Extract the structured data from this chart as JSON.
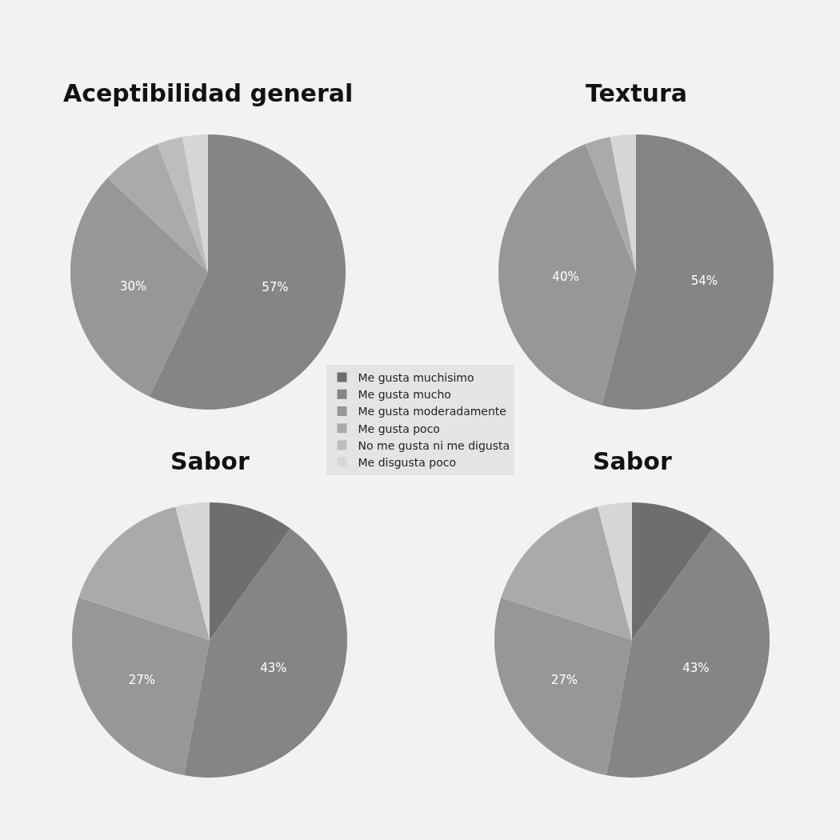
{
  "chart_data": [
    {
      "type": "pie",
      "title": "Aceptibilidad general",
      "categories": [
        "Me gusta muchisimo",
        "Me gusta mucho",
        "Me gusta moderadamente",
        "Me gusta poco",
        "No me gusta ni me digusta",
        "Me disgusta poco"
      ],
      "values": [
        0,
        57,
        30,
        7,
        3,
        3
      ],
      "value_labels": [
        null,
        "57%",
        "30%",
        null,
        null,
        null
      ],
      "colors": [
        "#6e6e6e",
        "#858585",
        "#979797",
        "#aaaaaa",
        "#bdbdbd",
        "#d6d6d6"
      ],
      "legend": "center"
    },
    {
      "type": "pie",
      "title": "Textura",
      "categories": [
        null,
        null,
        null,
        null,
        null,
        null
      ],
      "values": [
        0,
        54,
        40,
        3,
        0,
        3
      ],
      "value_labels": [
        null,
        "54%",
        "40%",
        null,
        null,
        null
      ],
      "colors": [
        "#6e6e6e",
        "#858585",
        "#979797",
        "#aaaaaa",
        "#bdbdbd",
        "#d6d6d6"
      ]
    },
    {
      "type": "pie",
      "title": "Sabor",
      "categories": [
        null,
        null,
        null,
        null,
        null,
        null
      ],
      "values": [
        10,
        43,
        27,
        16,
        0,
        4
      ],
      "value_labels": [
        null,
        "43%",
        "27%",
        null,
        null,
        null
      ],
      "colors": [
        "#6e6e6e",
        "#858585",
        "#979797",
        "#aaaaaa",
        "#bdbdbd",
        "#d6d6d6"
      ]
    },
    {
      "type": "pie",
      "title": "Sabor",
      "categories": [
        null,
        null,
        null,
        null,
        null,
        null
      ],
      "values": [
        10,
        43,
        27,
        16,
        0,
        4
      ],
      "value_labels": [
        null,
        "43%",
        "27%",
        null,
        null,
        null
      ],
      "colors": [
        "#6e6e6e",
        "#858585",
        "#979797",
        "#aaaaaa",
        "#bdbdbd",
        "#d6d6d6"
      ]
    }
  ]
}
